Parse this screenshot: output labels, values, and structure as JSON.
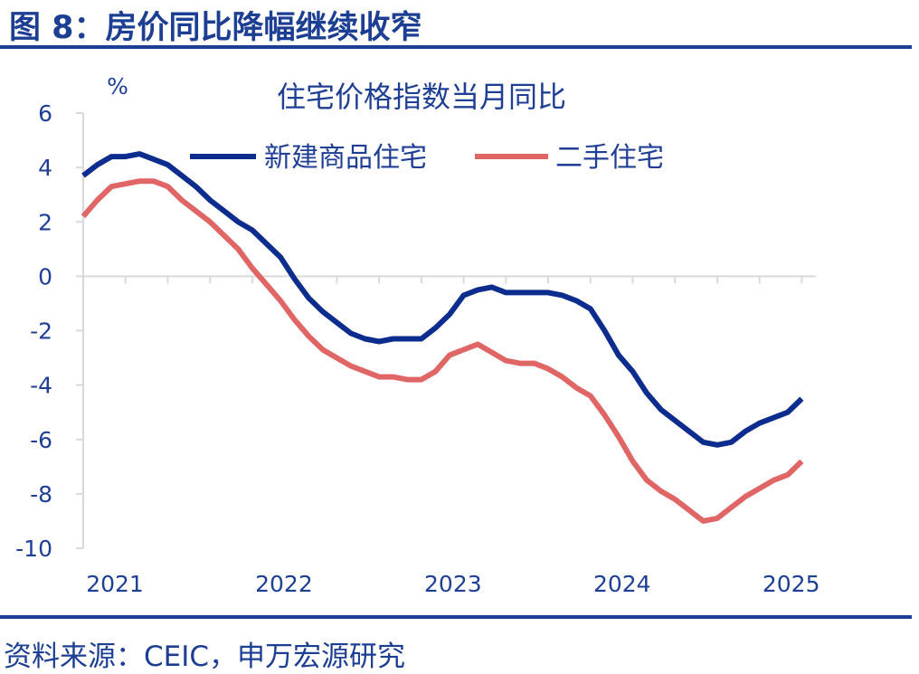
{
  "header": {
    "title": "图 8：房价同比降幅继续收窄"
  },
  "footer": {
    "source": "资料来源：CEIC，申万宏源研究"
  },
  "colors": {
    "brand": "#1c3f93",
    "new_home": "#0c2d8e",
    "second_hand": "#e06666",
    "axis": "#d9d9d9"
  },
  "chart_data": {
    "type": "line",
    "title": "住宅价格指数当月同比",
    "unit_label": "%",
    "ylim": [
      -10,
      6
    ],
    "yticks": [
      6,
      4,
      2,
      0,
      -2,
      -4,
      -6,
      -8,
      -10
    ],
    "ytick_labels": [
      "6",
      "4",
      "2",
      "0",
      "-2",
      "-4",
      "-6",
      "-8",
      "-10"
    ],
    "xlim": [
      2021.0,
      2025.3333
    ],
    "xticks": [
      2021,
      2022,
      2023,
      2024,
      2025
    ],
    "xtick_labels": [
      "2021",
      "2022",
      "2023",
      "2024",
      "2025"
    ],
    "grid": false,
    "legend_position": "top-center",
    "series": [
      {
        "name": "新建商品住宅",
        "color": "#0c2d8e",
        "x": [
          "2021-01",
          "2021-02",
          "2021-03",
          "2021-04",
          "2021-05",
          "2021-06",
          "2021-07",
          "2021-08",
          "2021-09",
          "2021-10",
          "2021-11",
          "2021-12",
          "2022-01",
          "2022-02",
          "2022-03",
          "2022-04",
          "2022-05",
          "2022-06",
          "2022-07",
          "2022-08",
          "2022-09",
          "2022-10",
          "2022-11",
          "2022-12",
          "2023-01",
          "2023-02",
          "2023-03",
          "2023-04",
          "2023-05",
          "2023-06",
          "2023-07",
          "2023-08",
          "2023-09",
          "2023-10",
          "2023-11",
          "2023-12",
          "2024-01",
          "2024-02",
          "2024-03",
          "2024-04",
          "2024-05",
          "2024-06",
          "2024-07",
          "2024-08",
          "2024-09",
          "2024-10",
          "2024-11",
          "2024-12",
          "2025-01",
          "2025-02",
          "2025-03",
          "2025-04"
        ],
        "values": [
          3.7,
          4.1,
          4.4,
          4.4,
          4.5,
          4.3,
          4.1,
          3.7,
          3.3,
          2.8,
          2.4,
          2.0,
          1.7,
          1.2,
          0.7,
          -0.1,
          -0.8,
          -1.3,
          -1.7,
          -2.1,
          -2.3,
          -2.4,
          -2.3,
          -2.3,
          -2.3,
          -1.9,
          -1.4,
          -0.7,
          -0.5,
          -0.4,
          -0.6,
          -0.6,
          -0.6,
          -0.6,
          -0.7,
          -0.9,
          -1.2,
          -2.0,
          -2.9,
          -3.5,
          -4.3,
          -4.9,
          -5.3,
          -5.7,
          -6.1,
          -6.2,
          -6.1,
          -5.7,
          -5.4,
          -5.2,
          -5.0,
          -4.5
        ]
      },
      {
        "name": "二手住宅",
        "color": "#e06666",
        "x": [
          "2021-01",
          "2021-02",
          "2021-03",
          "2021-04",
          "2021-05",
          "2021-06",
          "2021-07",
          "2021-08",
          "2021-09",
          "2021-10",
          "2021-11",
          "2021-12",
          "2022-01",
          "2022-02",
          "2022-03",
          "2022-04",
          "2022-05",
          "2022-06",
          "2022-07",
          "2022-08",
          "2022-09",
          "2022-10",
          "2022-11",
          "2022-12",
          "2023-01",
          "2023-02",
          "2023-03",
          "2023-04",
          "2023-05",
          "2023-06",
          "2023-07",
          "2023-08",
          "2023-09",
          "2023-10",
          "2023-11",
          "2023-12",
          "2024-01",
          "2024-02",
          "2024-03",
          "2024-04",
          "2024-05",
          "2024-06",
          "2024-07",
          "2024-08",
          "2024-09",
          "2024-10",
          "2024-11",
          "2024-12",
          "2025-01",
          "2025-02",
          "2025-03",
          "2025-04"
        ],
        "values": [
          2.2,
          2.8,
          3.3,
          3.4,
          3.5,
          3.5,
          3.3,
          2.8,
          2.4,
          2.0,
          1.5,
          1.0,
          0.3,
          -0.3,
          -0.9,
          -1.6,
          -2.2,
          -2.7,
          -3.0,
          -3.3,
          -3.5,
          -3.7,
          -3.7,
          -3.8,
          -3.8,
          -3.5,
          -2.9,
          -2.7,
          -2.5,
          -2.8,
          -3.1,
          -3.2,
          -3.2,
          -3.4,
          -3.7,
          -4.1,
          -4.4,
          -5.1,
          -5.9,
          -6.8,
          -7.5,
          -7.9,
          -8.2,
          -8.6,
          -9.0,
          -8.9,
          -8.5,
          -8.1,
          -7.8,
          -7.5,
          -7.3,
          -6.8
        ]
      }
    ]
  }
}
